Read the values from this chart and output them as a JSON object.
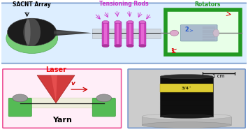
{
  "fig_width": 3.55,
  "fig_height": 1.89,
  "dpi": 100,
  "top_panel": {
    "border_color": "#7799cc",
    "bg_color": "#ddeeff",
    "title_sacnt": "SACNT Array",
    "title_tensioning": "Tensioning Rods",
    "title_rotators": "Rotators",
    "title_sacnt_color": "#000000",
    "title_tensioning_color": "#cc33cc",
    "title_rotators_color": "#229922"
  },
  "bottom_left_panel": {
    "border_color": "#ee5599",
    "bg_color": "#ffeef8",
    "title_laser": "Laser",
    "title_yarn": "Yarn",
    "title_laser_color": "#ee1111",
    "title_yarn_color": "#000000",
    "v_label": "v",
    "v_color": "#cc0000"
  },
  "bottom_right_panel": {
    "border_color": "#7799cc",
    "bg_color": "#ddeeff",
    "scale_label": "1 cm",
    "scale_color": "#000000"
  }
}
